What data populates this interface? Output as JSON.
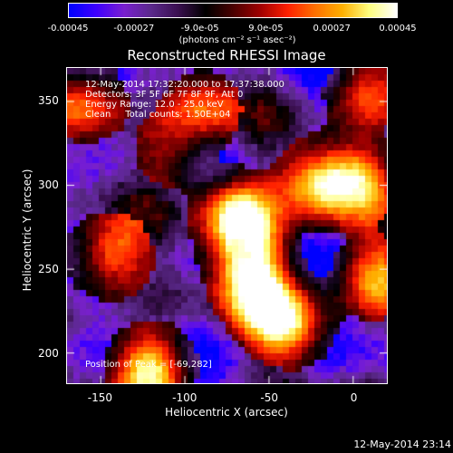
{
  "colorbar": {
    "ticks": [
      "-0.00045",
      "-0.00027",
      "-9.0e-05",
      "9.0e-05",
      "0.00027",
      "0.00045"
    ],
    "units": "(photons cm⁻² s⁻¹ asec⁻²)",
    "colors": [
      "#0000ff",
      "#4000ff",
      "#7a20d0",
      "#5b2a8c",
      "#3b1050",
      "#000000",
      "#4a0000",
      "#a00000",
      "#ff2000",
      "#ff7000",
      "#ffb000",
      "#ffff80",
      "#ffffff"
    ]
  },
  "chart_data": {
    "type": "heatmap",
    "title": "Reconstructed RHESSI Image",
    "xlabel": "Heliocentric X (arcsec)",
    "ylabel": "Heliocentric Y (arcsec)",
    "xlim": [
      -170,
      20
    ],
    "ylim": [
      182,
      370
    ],
    "x_ticks": [
      "-150",
      "-100",
      "-50",
      "0"
    ],
    "y_ticks": [
      "200",
      "250",
      "300",
      "350"
    ],
    "x_tick_values": [
      -150,
      -100,
      -50,
      0
    ],
    "y_tick_values": [
      200,
      250,
      300,
      350
    ],
    "annotations": [
      "12-May-2014 17:32:20.000 to 17:37:38.000",
      "Detectors: 3F 5F 6F 7F 8F 9F, Att 0",
      "Energy Range: 12.0 - 25.0 keV",
      "Clean     Total counts: 1.50E+04"
    ],
    "peak_label": "Position of Peak = [-69,282]",
    "peak_position": [
      -69,
      282
    ],
    "sources": [
      {
        "x": -69,
        "y": 282,
        "amp": 1.0
      },
      {
        "x": -62,
        "y": 262,
        "amp": 0.75
      },
      {
        "x": -60,
        "y": 245,
        "amp": 0.6
      },
      {
        "x": -50,
        "y": 226,
        "amp": 0.65
      },
      {
        "x": -20,
        "y": 302,
        "amp": 0.75
      },
      {
        "x": 2,
        "y": 305,
        "amp": 0.75
      },
      {
        "x": 12,
        "y": 245,
        "amp": 0.6
      },
      {
        "x": -35,
        "y": 215,
        "amp": 0.55
      },
      {
        "x": -145,
        "y": 258,
        "amp": 0.75
      },
      {
        "x": -120,
        "y": 192,
        "amp": 0.9
      },
      {
        "x": -158,
        "y": 350,
        "amp": 0.55
      },
      {
        "x": -90,
        "y": 345,
        "amp": 0.5
      },
      {
        "x": 5,
        "y": 355,
        "amp": 0.45
      },
      {
        "x": -108,
        "y": 320,
        "amp": 0.35
      }
    ],
    "grid": false
  },
  "timestamp": "12-May-2014 23:14"
}
